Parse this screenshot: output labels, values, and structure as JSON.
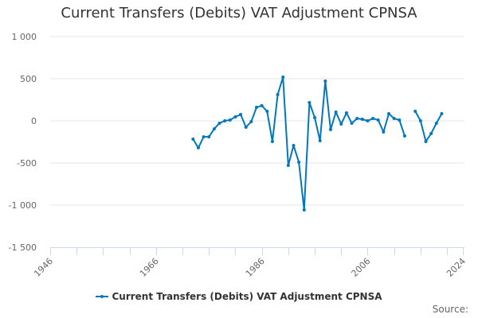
{
  "title": "Current Transfers (Debits) VAT Adjustment CPNSA",
  "legend": {
    "label": "Current Transfers (Debits) VAT Adjustment CPNSA",
    "color": "#0277bd"
  },
  "source_label": "Source:",
  "y_ticks": [
    "1 000",
    "500",
    "0",
    "-500",
    "-1 000",
    "-1 500"
  ],
  "x_ticks": [
    "1946",
    "1966",
    "1986",
    "2006",
    "2024"
  ],
  "chart_data": {
    "type": "line",
    "title": "Current Transfers (Debits) VAT Adjustment CPNSA",
    "xlabel": "",
    "ylabel": "",
    "xlim": [
      1946,
      2024
    ],
    "ylim": [
      -1500,
      1000
    ],
    "grid": true,
    "legend_position": "bottom",
    "x_tick_labels": [
      "1946",
      "1966",
      "1986",
      "2006",
      "2024"
    ],
    "y_tick_labels": [
      "1 000",
      "500",
      "0",
      "-500",
      "-1 000",
      "-1 500"
    ],
    "series": [
      {
        "name": "Current Transfers (Debits) VAT Adjustment CPNSA",
        "color": "#0277bd",
        "x": [
          1973,
          1974,
          1975,
          1976,
          1977,
          1978,
          1979,
          1980,
          1981,
          1982,
          1983,
          1984,
          1985,
          1986,
          1987,
          1988,
          1989,
          1990,
          1991,
          1992,
          1993,
          1994,
          1995,
          1996,
          1997,
          1998,
          1999,
          2000,
          2001,
          2002,
          2003,
          2004,
          2005,
          2006,
          2007,
          2008,
          2009,
          2010,
          2011,
          2012,
          2013,
          2014,
          2015,
          2016,
          2017,
          2018,
          2019,
          2020
        ],
        "values": [
          -217,
          -320,
          -190,
          -190,
          -95,
          -28,
          0,
          10,
          47,
          75,
          -75,
          -10,
          160,
          180,
          113,
          -245,
          311,
          519,
          -528,
          -292,
          -490,
          -1057,
          217,
          38,
          -236,
          472,
          -104,
          104,
          -38,
          94,
          -28,
          28,
          19,
          0,
          28,
          10,
          -132,
          85,
          28,
          10,
          -179,
          null,
          113,
          0,
          -245,
          -151,
          -28,
          85
        ]
      }
    ]
  }
}
